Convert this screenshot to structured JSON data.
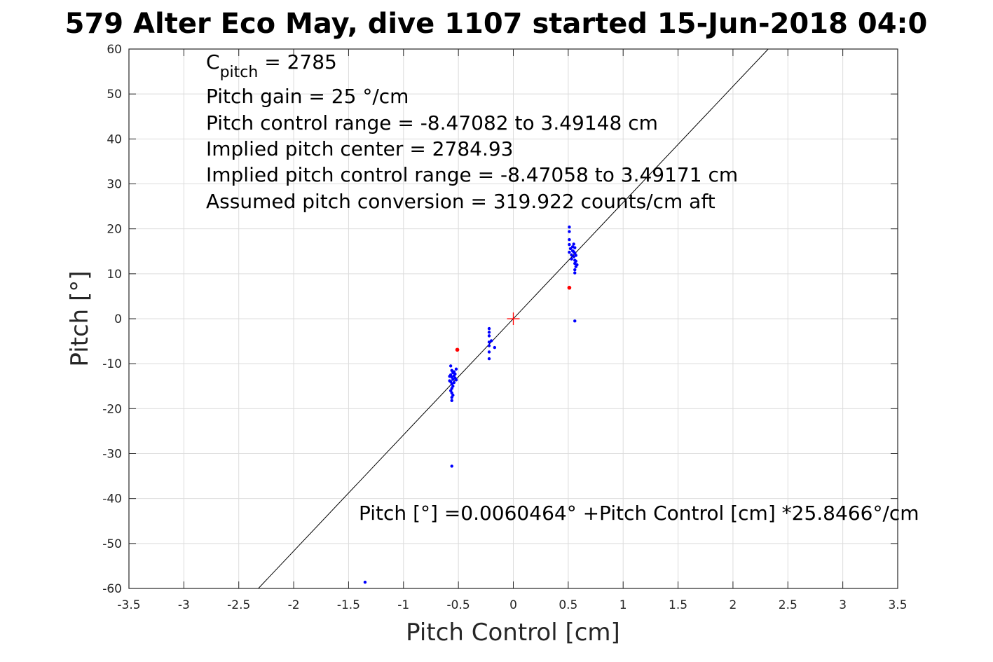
{
  "chart_data": {
    "type": "scatter",
    "title": "579 Alter Eco May, dive 1107 started 15-Jun-2018 04:0",
    "xlabel": "Pitch Control [cm]",
    "ylabel": "Pitch [°]",
    "xlim": [
      -3.5,
      3.5
    ],
    "ylim": [
      -60,
      60
    ],
    "grid": true,
    "x_ticks": [
      -3.5,
      -3,
      -2.5,
      -2,
      -1.5,
      -1,
      -0.5,
      0,
      0.5,
      1,
      1.5,
      2,
      2.5,
      3,
      3.5
    ],
    "y_ticks": [
      -60,
      -50,
      -40,
      -30,
      -20,
      -10,
      0,
      10,
      20,
      30,
      40,
      50,
      60
    ],
    "x_tick_labels": [
      "-3.5",
      "-3",
      "-2.5",
      "-2",
      "-1.5",
      "-1",
      "-0.5",
      "0",
      "0.5",
      "1",
      "1.5",
      "2",
      "2.5",
      "3",
      "3.5"
    ],
    "y_tick_labels": [
      "-60",
      "-50",
      "-40",
      "-30",
      "-20",
      "-10",
      "0",
      "10",
      "20",
      "30",
      "40",
      "50",
      "60"
    ],
    "annotations": {
      "c_pitch_symbol": "C",
      "c_pitch_subscript": "pitch",
      "c_pitch_value": " = 2785",
      "pitch_gain": "Pitch gain = 25 °/cm",
      "pitch_control_range": "Pitch control range = -8.47082 to 3.49148 cm",
      "implied_pitch_center": "Implied pitch center = 2784.93",
      "implied_pitch_control_range": "Implied pitch control range = -8.47058 to 3.49171 cm",
      "assumed_pitch_conversion": "Assumed pitch conversion = 319.922 counts/cm aft",
      "fit_equation": "Pitch [°] =0.0060464° +Pitch Control [cm] *25.8466°/cm"
    },
    "fit_line": {
      "intercept": 0.0060464,
      "slope": 25.8466,
      "color": "#000000"
    },
    "center_marker": {
      "x": 0,
      "y": 0,
      "color": "#ff0000"
    },
    "series": [
      {
        "color": "#0000ff",
        "points": [
          [
            -1.35,
            -58.6
          ],
          [
            -0.56,
            -32.8
          ],
          [
            -0.57,
            -10.5
          ],
          [
            -0.56,
            -11.5
          ],
          [
            -0.55,
            -12.0
          ],
          [
            -0.57,
            -12.5
          ],
          [
            -0.56,
            -13.0
          ],
          [
            -0.55,
            -13.5
          ],
          [
            -0.57,
            -14.0
          ],
          [
            -0.56,
            -14.5
          ],
          [
            -0.55,
            -15.0
          ],
          [
            -0.56,
            -15.5
          ],
          [
            -0.57,
            -16.0
          ],
          [
            -0.56,
            -16.5
          ],
          [
            -0.55,
            -17.0
          ],
          [
            -0.56,
            -17.5
          ],
          [
            -0.56,
            -18.2
          ],
          [
            -0.54,
            -11.8
          ],
          [
            -0.53,
            -12.3
          ],
          [
            -0.53,
            -13.2
          ],
          [
            -0.52,
            -11.2
          ],
          [
            -0.52,
            -13.6
          ],
          [
            -0.58,
            -12.8
          ],
          [
            -0.58,
            -13.8
          ],
          [
            -0.54,
            -14.2
          ],
          [
            -0.54,
            -12.7
          ],
          [
            -0.22,
            -2.2
          ],
          [
            -0.22,
            -3.0
          ],
          [
            -0.22,
            -3.8
          ],
          [
            -0.22,
            -5.2
          ],
          [
            -0.22,
            -6.0
          ],
          [
            -0.22,
            -7.4
          ],
          [
            -0.22,
            -8.9
          ],
          [
            -0.17,
            -6.4
          ],
          [
            -0.2,
            -4.9
          ],
          [
            0.51,
            20.4
          ],
          [
            0.51,
            19.4
          ],
          [
            0.51,
            17.6
          ],
          [
            0.51,
            16.5
          ],
          [
            0.52,
            15.6
          ],
          [
            0.51,
            14.8
          ],
          [
            0.53,
            14.2
          ],
          [
            0.54,
            16.0
          ],
          [
            0.54,
            15.1
          ],
          [
            0.55,
            16.6
          ],
          [
            0.56,
            15.8
          ],
          [
            0.56,
            14.6
          ],
          [
            0.55,
            13.8
          ],
          [
            0.56,
            13.0
          ],
          [
            0.56,
            12.3
          ],
          [
            0.57,
            11.6
          ],
          [
            0.56,
            10.9
          ],
          [
            0.56,
            10.2
          ],
          [
            0.57,
            12.8
          ],
          [
            0.55,
            14.9
          ],
          [
            0.53,
            13.3
          ],
          [
            0.57,
            14.1
          ],
          [
            0.58,
            12.0
          ],
          [
            0.56,
            -0.5
          ]
        ]
      },
      {
        "color": "#ff0000",
        "points": [
          [
            -0.51,
            -6.9
          ],
          [
            0.51,
            6.9
          ]
        ]
      }
    ]
  }
}
